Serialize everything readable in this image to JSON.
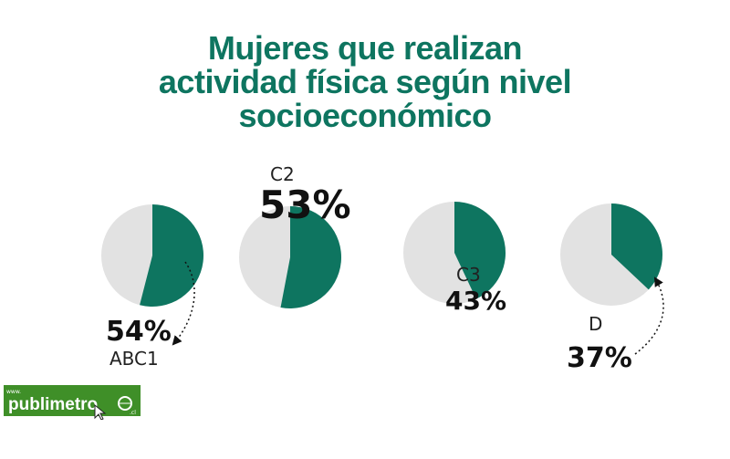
{
  "title_lines": [
    "Mujeres que realizan",
    "actividad física según nivel",
    "socioeconómico"
  ],
  "colors": {
    "title": "#0e7560",
    "slice": "#0e7560",
    "rest": "#e2e2e2",
    "logo_bg": "#3f8f28"
  },
  "chart_data": {
    "type": "pie",
    "series": [
      {
        "category": "ABC1",
        "value": 54,
        "label": "54%"
      },
      {
        "category": "C2",
        "value": 53,
        "label": "53%"
      },
      {
        "category": "C3",
        "value": 43,
        "label": "43%"
      },
      {
        "category": "D",
        "value": 37,
        "label": "37%"
      }
    ]
  },
  "logo": {
    "www": "www.",
    "name": "publimetro",
    "suffix": ".cl"
  }
}
